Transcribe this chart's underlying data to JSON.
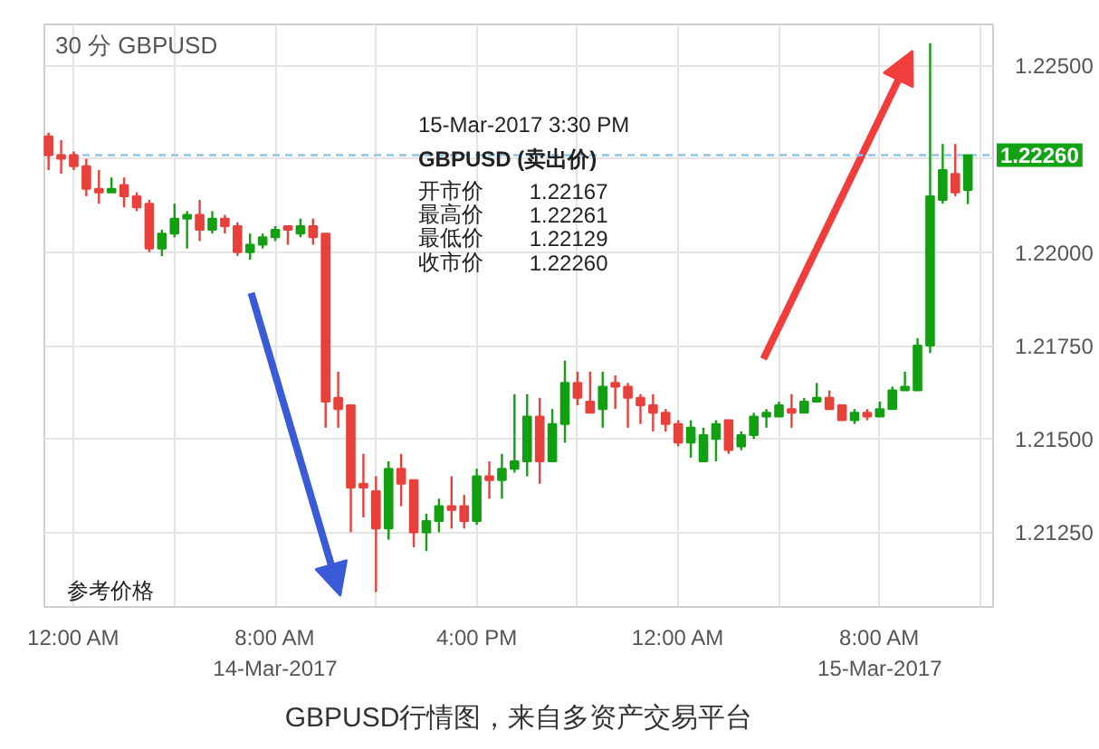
{
  "chart_data": {
    "type": "candlestick",
    "title": "30 分 GBPUSD",
    "x": [
      "2017-03-13T23:00",
      "2017-03-13T23:30",
      "2017-03-14T00:00",
      "2017-03-14T00:30",
      "2017-03-14T01:00",
      "2017-03-14T01:30",
      "2017-03-14T02:00",
      "2017-03-14T02:30",
      "2017-03-14T03:00",
      "2017-03-14T03:30",
      "2017-03-14T04:00",
      "2017-03-14T04:30",
      "2017-03-14T05:00",
      "2017-03-14T05:30",
      "2017-03-14T06:00",
      "2017-03-14T06:30",
      "2017-03-14T07:00",
      "2017-03-14T07:30",
      "2017-03-14T08:00",
      "2017-03-14T08:30",
      "2017-03-14T09:00",
      "2017-03-14T09:30",
      "2017-03-14T10:00",
      "2017-03-14T10:30",
      "2017-03-14T11:00",
      "2017-03-14T11:30",
      "2017-03-14T12:00",
      "2017-03-14T12:30",
      "2017-03-14T13:00",
      "2017-03-14T13:30",
      "2017-03-14T14:00",
      "2017-03-14T14:30",
      "2017-03-14T15:00",
      "2017-03-14T15:30",
      "2017-03-14T16:00",
      "2017-03-14T16:30",
      "2017-03-14T17:00",
      "2017-03-14T17:30",
      "2017-03-14T18:00",
      "2017-03-14T18:30",
      "2017-03-14T19:00",
      "2017-03-14T19:30",
      "2017-03-14T20:00",
      "2017-03-14T20:30",
      "2017-03-14T21:00",
      "2017-03-14T21:30",
      "2017-03-14T22:00",
      "2017-03-14T22:30",
      "2017-03-14T23:00",
      "2017-03-14T23:30",
      "2017-03-15T00:00",
      "2017-03-15T00:30",
      "2017-03-15T01:00",
      "2017-03-15T01:30",
      "2017-03-15T02:00",
      "2017-03-15T02:30",
      "2017-03-15T03:00",
      "2017-03-15T03:30",
      "2017-03-15T04:00",
      "2017-03-15T04:30",
      "2017-03-15T05:00",
      "2017-03-15T05:30",
      "2017-03-15T06:00",
      "2017-03-15T06:30",
      "2017-03-15T07:00",
      "2017-03-15T07:30",
      "2017-03-15T08:00",
      "2017-03-15T08:30",
      "2017-03-15T09:00",
      "2017-03-15T09:30",
      "2017-03-15T10:00",
      "2017-03-15T10:30",
      "2017-03-15T11:00",
      "2017-03-15T11:30"
    ],
    "ohlc": [
      [
        1.2231,
        1.2232,
        1.2222,
        1.2226
      ],
      [
        1.2226,
        1.223,
        1.2221,
        1.2225
      ],
      [
        1.2226,
        1.2227,
        1.2222,
        1.2223
      ],
      [
        1.2223,
        1.2225,
        1.2215,
        1.2217
      ],
      [
        1.2217,
        1.2222,
        1.2213,
        1.2216
      ],
      [
        1.2216,
        1.222,
        1.2216,
        1.2217
      ],
      [
        1.2218,
        1.222,
        1.2212,
        1.2215
      ],
      [
        1.2215,
        1.2216,
        1.2211,
        1.2212
      ],
      [
        1.2213,
        1.2214,
        1.22,
        1.2201
      ],
      [
        1.2201,
        1.2206,
        1.2199,
        1.2205
      ],
      [
        1.2205,
        1.2213,
        1.2204,
        1.2209
      ],
      [
        1.2209,
        1.2211,
        1.2201,
        1.221
      ],
      [
        1.221,
        1.2214,
        1.2203,
        1.2206
      ],
      [
        1.2206,
        1.2211,
        1.2205,
        1.2209
      ],
      [
        1.2209,
        1.221,
        1.2205,
        1.2207
      ],
      [
        1.2207,
        1.2208,
        1.2199,
        1.22
      ],
      [
        1.22,
        1.2205,
        1.2198,
        1.2202
      ],
      [
        1.2202,
        1.2205,
        1.2201,
        1.2204
      ],
      [
        1.2204,
        1.2207,
        1.2203,
        1.2206
      ],
      [
        1.2207,
        1.2207,
        1.2202,
        1.2206
      ],
      [
        1.2205,
        1.2209,
        1.2204,
        1.2207
      ],
      [
        1.2207,
        1.2209,
        1.2202,
        1.2204
      ],
      [
        1.2205,
        1.2205,
        1.2153,
        1.216
      ],
      [
        1.2161,
        1.2168,
        1.2153,
        1.2158
      ],
      [
        1.2159,
        1.2159,
        1.2125,
        1.2137
      ],
      [
        1.2138,
        1.2146,
        1.2129,
        1.2137
      ],
      [
        1.2136,
        1.214,
        1.2109,
        1.2126
      ],
      [
        1.2126,
        1.2144,
        1.2123,
        1.2142
      ],
      [
        1.2142,
        1.2146,
        1.2132,
        1.2138
      ],
      [
        1.2139,
        1.2139,
        1.2121,
        1.2125
      ],
      [
        1.2125,
        1.213,
        1.212,
        1.2128
      ],
      [
        1.2128,
        1.2134,
        1.2125,
        1.2132
      ],
      [
        1.2132,
        1.214,
        1.2126,
        1.2131
      ],
      [
        1.2132,
        1.2135,
        1.2126,
        1.2128
      ],
      [
        1.2128,
        1.2142,
        1.2127,
        1.214
      ],
      [
        1.214,
        1.2144,
        1.2134,
        1.2139
      ],
      [
        1.2139,
        1.2146,
        1.2134,
        1.2142
      ],
      [
        1.2142,
        1.2162,
        1.2141,
        1.2144
      ],
      [
        1.2144,
        1.2162,
        1.214,
        1.2156
      ],
      [
        1.2156,
        1.2161,
        1.2138,
        1.2144
      ],
      [
        1.2144,
        1.2158,
        1.2144,
        1.2154
      ],
      [
        1.2154,
        1.2171,
        1.2149,
        1.2165
      ],
      [
        1.2165,
        1.2168,
        1.2159,
        1.2161
      ],
      [
        1.216,
        1.2168,
        1.2157,
        1.2157
      ],
      [
        1.2158,
        1.2168,
        1.2153,
        1.2164
      ],
      [
        1.2165,
        1.2167,
        1.2158,
        1.2164
      ],
      [
        1.2164,
        1.2165,
        1.2153,
        1.2161
      ],
      [
        1.2161,
        1.2162,
        1.2154,
        1.2159
      ],
      [
        1.2159,
        1.2162,
        1.2152,
        1.2157
      ],
      [
        1.2157,
        1.2158,
        1.2152,
        1.2154
      ],
      [
        1.2154,
        1.2155,
        1.2148,
        1.2149
      ],
      [
        1.2149,
        1.2155,
        1.2145,
        1.2153
      ],
      [
        1.2144,
        1.2153,
        1.2144,
        1.2151
      ],
      [
        1.215,
        1.2155,
        1.2144,
        1.2154
      ],
      [
        1.2155,
        1.2155,
        1.2146,
        1.2147
      ],
      [
        1.2148,
        1.2152,
        1.2147,
        1.2151
      ],
      [
        1.2151,
        1.2157,
        1.215,
        1.2156
      ],
      [
        1.2156,
        1.2158,
        1.2153,
        1.2157
      ],
      [
        1.2156,
        1.216,
        1.2156,
        1.2159
      ],
      [
        1.2158,
        1.2162,
        1.2153,
        1.2157
      ],
      [
        1.2157,
        1.2161,
        1.2157,
        1.216
      ],
      [
        1.216,
        1.2165,
        1.216,
        1.2161
      ],
      [
        1.2161,
        1.2163,
        1.2158,
        1.2158
      ],
      [
        1.2159,
        1.2159,
        1.2155,
        1.2155
      ],
      [
        1.2155,
        1.2158,
        1.2154,
        1.2157
      ],
      [
        1.2157,
        1.2158,
        1.2155,
        1.2156
      ],
      [
        1.2156,
        1.216,
        1.2156,
        1.2158
      ],
      [
        1.2158,
        1.2164,
        1.2158,
        1.2163
      ],
      [
        1.2163,
        1.2168,
        1.2163,
        1.2164
      ],
      [
        1.2163,
        1.2177,
        1.2163,
        1.2175
      ],
      [
        1.2175,
        1.2256,
        1.2173,
        1.2215
      ],
      [
        1.2214,
        1.2229,
        1.2213,
        1.2222
      ],
      [
        1.2221,
        1.2229,
        1.2215,
        1.2216
      ],
      [
        1.22167,
        1.22261,
        1.22129,
        1.2226
      ]
    ],
    "colors": [
      "#e8403a",
      "#e8403a",
      "#e8403a",
      "#e8403a",
      "#e8403a",
      "#12a012",
      "#e8403a",
      "#e8403a",
      "#e8403a",
      "#12a012",
      "#12a012",
      "#12a012",
      "#e8403a",
      "#12a012",
      "#e8403a",
      "#e8403a",
      "#12a012",
      "#12a012",
      "#12a012",
      "#e8403a",
      "#12a012",
      "#e8403a",
      "#e8403a",
      "#e8403a",
      "#e8403a",
      "#e8403a",
      "#e8403a",
      "#12a012",
      "#e8403a",
      "#e8403a",
      "#12a012",
      "#12a012",
      "#e8403a",
      "#e8403a",
      "#12a012",
      "#e8403a",
      "#12a012",
      "#12a012",
      "#12a012",
      "#e8403a",
      "#12a012",
      "#12a012",
      "#e8403a",
      "#e8403a",
      "#12a012",
      "#e8403a",
      "#e8403a",
      "#e8403a",
      "#e8403a",
      "#e8403a",
      "#e8403a",
      "#12a012",
      "#12a012",
      "#12a012",
      "#e8403a",
      "#12a012",
      "#12a012",
      "#12a012",
      "#12a012",
      "#e8403a",
      "#12a012",
      "#12a012",
      "#e8403a",
      "#e8403a",
      "#12a012",
      "#e8403a",
      "#12a012",
      "#12a012",
      "#12a012",
      "#12a012",
      "#12a012",
      "#12a012",
      "#e8403a",
      "#12a012"
    ],
    "xlim": [
      "2017-03-13T22:50",
      "2017-03-15T12:30"
    ],
    "ylim": [
      1.2105,
      1.2261
    ],
    "xticks": [
      {
        "value": "2017-03-14T00:00",
        "label": "12:00 AM"
      },
      {
        "value": "2017-03-14T04:00",
        "label": null
      },
      {
        "value": "2017-03-14T08:00",
        "label": "8:00 AM\n14-Mar-2017"
      },
      {
        "value": "2017-03-14T12:00",
        "label": null
      },
      {
        "value": "2017-03-14T16:00",
        "label": "4:00 PM"
      },
      {
        "value": "2017-03-14T20:00",
        "label": null
      },
      {
        "value": "2017-03-15T00:00",
        "label": "12:00 AM"
      },
      {
        "value": "2017-03-15T04:00",
        "label": null
      },
      {
        "value": "2017-03-15T08:00",
        "label": "8:00 AM\n15-Mar-2017"
      },
      {
        "value": "2017-03-15T12:00",
        "label": null
      }
    ],
    "yticks": [
      {
        "value": 1.2125,
        "label": "1.21250"
      },
      {
        "value": 1.215,
        "label": "1.21500"
      },
      {
        "value": 1.2175,
        "label": "1.21750"
      },
      {
        "value": 1.22,
        "label": "1.22000"
      },
      {
        "value": 1.2225,
        "label": null
      },
      {
        "value": 1.225,
        "label": "1.22500"
      }
    ],
    "grid": true,
    "ref_lines": [
      {
        "axis": "y",
        "value": 1.2226,
        "label": "1.22260",
        "color": "#8ec6ee",
        "line_style": "dashed"
      }
    ],
    "annotations": [
      "15-Mar-2017 3:30 PM",
      "GBPUSD (卖出价)",
      "开市价",
      "1.22167",
      "最高价",
      "1.22261",
      "最低价",
      "1.22129",
      "收市价",
      "1.22260",
      "参考价格",
      "GBPUSD行情图，来自多资产交易平台"
    ]
  }
}
